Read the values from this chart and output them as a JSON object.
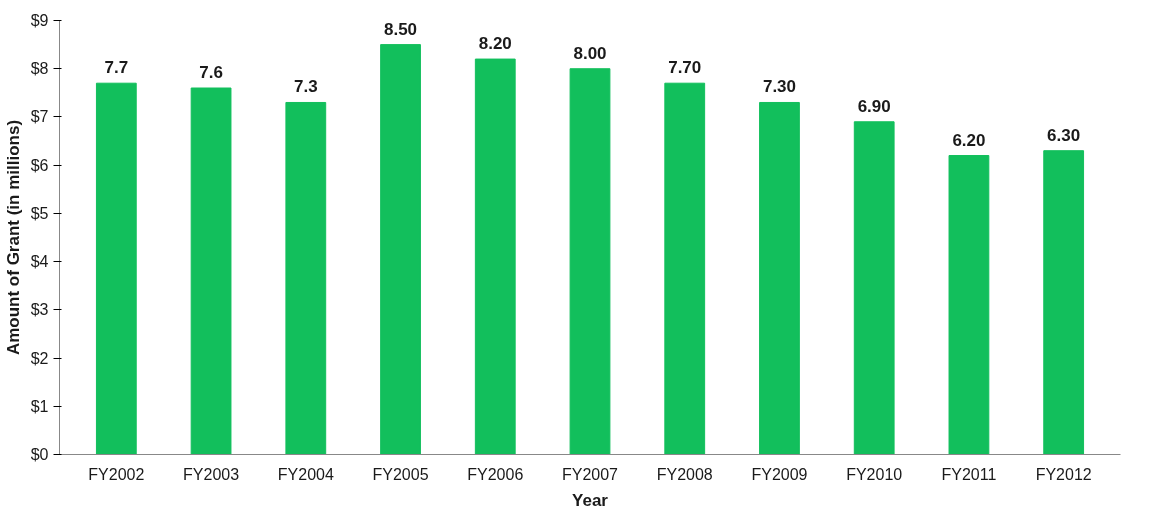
{
  "chart_data": {
    "type": "bar",
    "xlabel": "Year",
    "ylabel": "Amount of Grant (in millions)",
    "categories": [
      "FY2002",
      "FY2003",
      "FY2004",
      "FY2005",
      "FY2006",
      "FY2007",
      "FY2008",
      "FY2009",
      "FY2010",
      "FY2011",
      "FY2012"
    ],
    "values": [
      7.7,
      7.6,
      7.3,
      8.5,
      8.2,
      8.0,
      7.7,
      7.3,
      6.9,
      6.2,
      6.3
    ],
    "value_labels": [
      "7.7",
      "7.6",
      "7.3",
      "8.50",
      "8.20",
      "8.00",
      "7.70",
      "7.30",
      "6.90",
      "6.20",
      "6.30"
    ],
    "color": "#12bf5c",
    "ylim": [
      0,
      9
    ],
    "yticks": [
      {
        "value": 0,
        "label": "$0"
      },
      {
        "value": 1,
        "label": "$1"
      },
      {
        "value": 2,
        "label": "$2"
      },
      {
        "value": 3,
        "label": "$3"
      },
      {
        "value": 4,
        "label": "$4"
      },
      {
        "value": 5,
        "label": "$5"
      },
      {
        "value": 6,
        "label": "$6"
      },
      {
        "value": 7,
        "label": "$7"
      },
      {
        "value": 8,
        "label": "$8"
      },
      {
        "value": 9,
        "label": "$9"
      }
    ],
    "grid": false
  }
}
